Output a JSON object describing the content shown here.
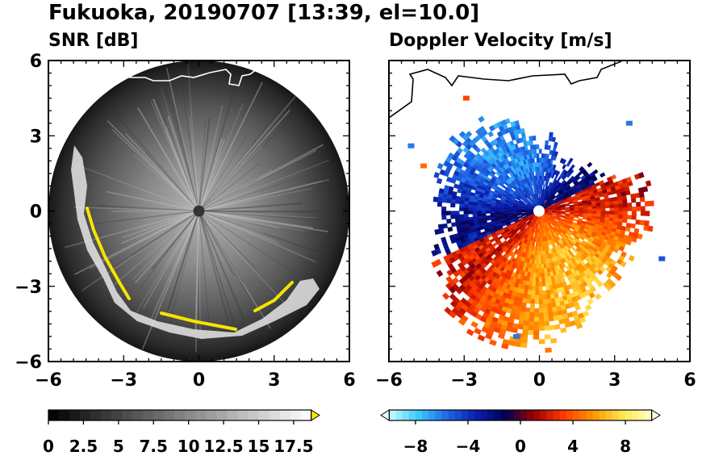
{
  "figure": {
    "title": "Fukuoka, 20190707 [13:39, el=10.0]"
  },
  "chart_data": [
    {
      "type": "heatmap",
      "title": "SNR [dB]",
      "xlim": [
        -6,
        6
      ],
      "ylim": [
        -6,
        6
      ],
      "x_ticks": [
        "−6",
        "−3",
        "0",
        "3",
        "6"
      ],
      "y_ticks": [
        "6",
        "3",
        "0",
        "−3",
        "−6"
      ],
      "radar_range": 6,
      "colorbar": {
        "min": 0,
        "max": 18.75,
        "step": 0.75,
        "extend": "max",
        "tick_values": [
          0,
          2.5,
          5,
          7.5,
          10,
          12.5,
          15,
          17.5
        ],
        "tick_labels": [
          "0",
          "2.5",
          "5",
          "7.5",
          "10",
          "12.5",
          "15",
          "17.5"
        ],
        "colors": [
          "#000000",
          "#ffffff"
        ],
        "over_color": "#f5e400"
      }
    },
    {
      "type": "heatmap",
      "title": "Doppler Velocity [m/s]",
      "xlim": [
        -6,
        6
      ],
      "ylim": [
        -6,
        6
      ],
      "x_ticks": [
        "−6",
        "−3",
        "0",
        "3",
        "6"
      ],
      "y_ticks": [],
      "radar_range": 6,
      "colorbar": {
        "min": -10,
        "max": 10,
        "step": 0.5,
        "extend": "both",
        "tick_values": [
          -8,
          -4,
          0,
          4,
          8
        ],
        "tick_labels": [
          "−8",
          "−4",
          "0",
          "4",
          "8"
        ],
        "colors": [
          "#c8fbff",
          "#3cc8ff",
          "#1e64e6",
          "#0a1eaa",
          "#000050",
          "#a00000",
          "#ff3c00",
          "#ff9600",
          "#ffe650",
          "#ffffc8"
        ],
        "under_color": "#e0ffff",
        "over_color": "#ffffe0"
      }
    }
  ],
  "colors": {
    "coastline": "#ffffff",
    "coastline_right": "#000000"
  }
}
